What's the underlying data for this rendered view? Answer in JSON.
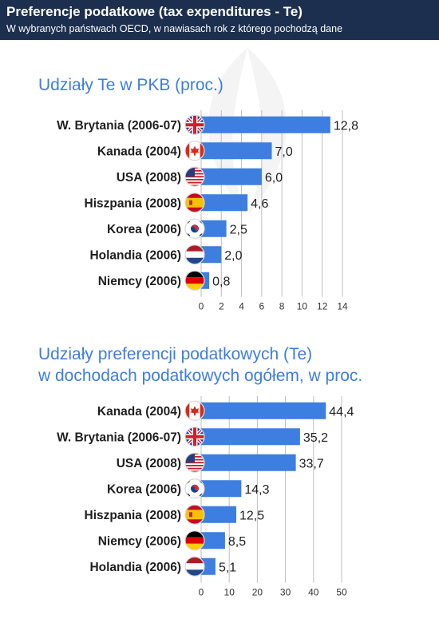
{
  "header": {
    "title": "Preferencje podatkowe (tax expenditures - Te)",
    "subtitle": "W wybranych państwach OECD, w nawiasach rok z którego pochodzą dane"
  },
  "colors": {
    "header_bg": "#1c2f4e",
    "bar": "#3d7ee0",
    "section_title": "#3d7ee0",
    "gridline": "#bbbbbb"
  },
  "chart_data": [
    {
      "type": "bar",
      "orientation": "horizontal",
      "title": "Udziały Te w PKB (proc.)",
      "categories": [
        "W. Brytania (2006-07)",
        "Kanada (2004)",
        "USA (2008)",
        "Hiszpania (2008)",
        "Korea (2006)",
        "Holandia (2006)",
        "Niemcy (2006)"
      ],
      "value_labels": [
        "12,8",
        "7,0",
        "6,0",
        "4,6",
        "2,5",
        "2,0",
        "0,8"
      ],
      "values": [
        12.8,
        7.0,
        6.0,
        4.6,
        2.5,
        2.0,
        0.8
      ],
      "flags": [
        "uk",
        "canada",
        "usa",
        "spain",
        "korea",
        "netherlands",
        "germany"
      ],
      "xlim": [
        0,
        14
      ],
      "xticks": [
        0,
        2,
        4,
        6,
        8,
        10,
        12,
        14
      ],
      "grid": true
    },
    {
      "type": "bar",
      "orientation": "horizontal",
      "title": "Udziały preferencji podatkowych (Te)",
      "title_line2": "w dochodach podatkowych ogółem, w proc.",
      "categories": [
        "Kanada (2004)",
        "W. Brytania (2006-07)",
        "USA (2008)",
        "Korea (2006)",
        "Hiszpania (2008)",
        "Niemcy (2006)",
        "Holandia (2006)"
      ],
      "value_labels": [
        "44,4",
        "35,2",
        "33,7",
        "14,3",
        "12,5",
        "8,5",
        "5,1"
      ],
      "values": [
        44.4,
        35.2,
        33.7,
        14.3,
        12.5,
        8.5,
        5.1
      ],
      "flags": [
        "canada",
        "uk",
        "usa",
        "korea",
        "spain",
        "germany",
        "netherlands"
      ],
      "xlim": [
        0,
        50
      ],
      "xticks": [
        0,
        10,
        20,
        30,
        40,
        50
      ],
      "grid": true
    }
  ]
}
